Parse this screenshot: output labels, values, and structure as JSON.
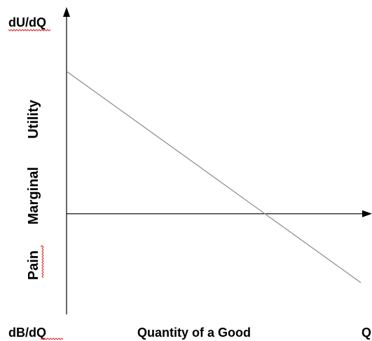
{
  "chart_data": {
    "type": "line",
    "corner_labels": {
      "top_left": "dU/dQ",
      "bottom_left": "dB/dQ",
      "bottom_right": "Q"
    },
    "xlabel": "Quantity of a Good",
    "ylabel_parts": [
      "Pain",
      "Marginal",
      "Utility"
    ],
    "xlim": [
      0,
      10
    ],
    "ylim": [
      -4,
      8
    ],
    "series": [
      {
        "x": [
          0,
          10
        ],
        "y": [
          6,
          -2.9
        ]
      }
    ],
    "zero_line": 0,
    "grid": false,
    "colors": {
      "axis": "#000000",
      "line": "#8a8a8a",
      "spellcheck": "#e0282b"
    }
  }
}
